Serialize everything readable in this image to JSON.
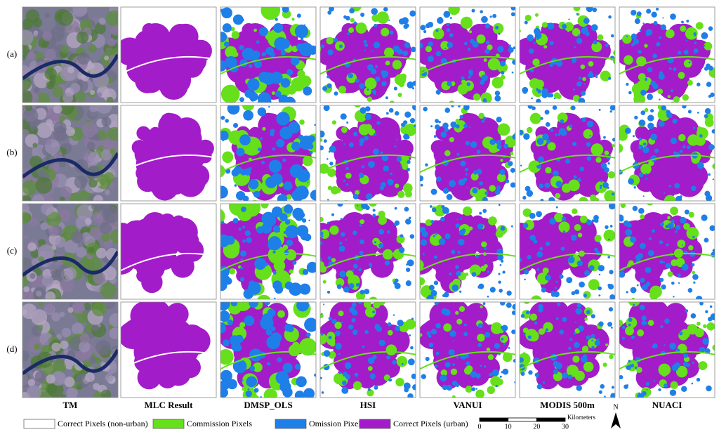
{
  "row_labels": [
    "(a)",
    "(b)",
    "(c)",
    "(d)"
  ],
  "column_labels": [
    "TM",
    "MLC Result",
    "DMSP_OLS",
    "HSI",
    "VANUI",
    "MODIS 500m",
    "NUACI"
  ],
  "legend": [
    {
      "label": "Correct Pixels (non-urban)",
      "color": "#ffffff"
    },
    {
      "label": "Commission Pixels",
      "color": "#66e01a"
    },
    {
      "label": "Omission Pixels",
      "color": "#1f7fe8"
    },
    {
      "label": "Correct Pixels (urban)",
      "color": "#a31cc9"
    }
  ],
  "scale_bar": {
    "ticks": [
      0,
      10,
      20,
      30
    ],
    "unit": "Kilometers"
  },
  "north_arrow": "N"
}
